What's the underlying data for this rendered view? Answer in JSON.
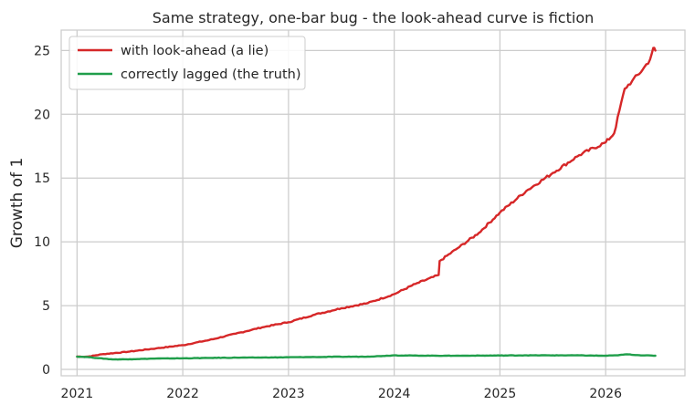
{
  "chart_data": {
    "type": "line",
    "title": "Same strategy, one-bar bug - the look-ahead curve is fiction",
    "xlabel": "",
    "ylabel": "Growth of 1",
    "xlim": [
      2020.85,
      2026.75
    ],
    "ylim": [
      -0.5,
      26.6
    ],
    "xticks": [
      2021,
      2022,
      2023,
      2024,
      2025,
      2026
    ],
    "xtick_labels": [
      "2021",
      "2022",
      "2023",
      "2024",
      "2025",
      "2026"
    ],
    "yticks": [
      0,
      5,
      10,
      15,
      20,
      25
    ],
    "ytick_labels": [
      "0",
      "5",
      "10",
      "15",
      "20",
      "25"
    ],
    "grid": true,
    "legend_position": "top-left",
    "series": [
      {
        "name": "with look-ahead (a lie)",
        "color": "#d62728",
        "x": [
          2021.0,
          2021.1,
          2021.25,
          2021.5,
          2021.75,
          2022.0,
          2022.25,
          2022.5,
          2022.75,
          2023.0,
          2023.25,
          2023.5,
          2023.75,
          2024.0,
          2024.2,
          2024.42,
          2024.43,
          2024.6,
          2024.8,
          2025.0,
          2025.25,
          2025.5,
          2025.75,
          2026.0,
          2026.08,
          2026.18,
          2026.25,
          2026.35,
          2026.42,
          2026.45,
          2026.47
        ],
        "y": [
          1.0,
          1.0,
          1.2,
          1.4,
          1.65,
          1.9,
          2.3,
          2.8,
          3.3,
          3.7,
          4.3,
          4.8,
          5.2,
          5.9,
          6.7,
          7.4,
          8.5,
          9.5,
          10.7,
          12.3,
          14.0,
          15.4,
          16.8,
          17.8,
          18.5,
          22.0,
          22.6,
          23.5,
          24.3,
          25.2,
          25.0
        ]
      },
      {
        "name": "correctly lagged (the truth)",
        "color": "#1f9e4a",
        "x": [
          2021.0,
          2021.1,
          2021.2,
          2021.35,
          2021.5,
          2021.75,
          2022.0,
          2022.25,
          2022.5,
          2022.75,
          2023.0,
          2023.25,
          2023.5,
          2023.75,
          2024.0,
          2024.25,
          2024.5,
          2024.75,
          2025.0,
          2025.25,
          2025.5,
          2025.75,
          2026.0,
          2026.1,
          2026.2,
          2026.3,
          2026.47
        ],
        "y": [
          1.0,
          0.97,
          0.88,
          0.78,
          0.8,
          0.85,
          0.87,
          0.9,
          0.92,
          0.93,
          0.95,
          0.97,
          0.99,
          1.0,
          1.1,
          1.08,
          1.07,
          1.08,
          1.09,
          1.1,
          1.1,
          1.1,
          1.07,
          1.1,
          1.18,
          1.12,
          1.07
        ]
      }
    ]
  }
}
